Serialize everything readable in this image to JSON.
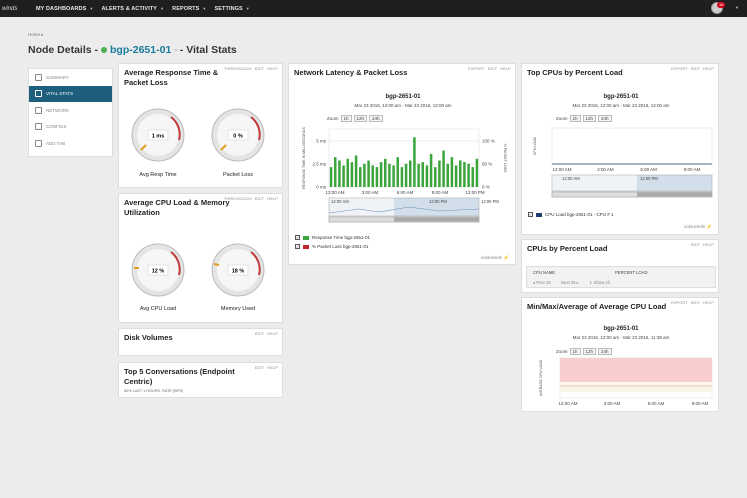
{
  "nav": {
    "brand": "winds",
    "items": [
      {
        "label": "MY DASHBOARDS"
      },
      {
        "label": "ALERTS & ACTIVITY"
      },
      {
        "label": "REPORTS"
      },
      {
        "label": "SETTINGS"
      }
    ],
    "notification_count": "16"
  },
  "breadcrumb": "Home",
  "page": {
    "title_prefix": "Node Details -",
    "node_name": "bgp-2651-01",
    "title_suffix": "- Vital Stats",
    "status_color": "#4cae4c"
  },
  "sidebar": {
    "items": [
      {
        "label": "SUMMARY",
        "icon": "home-icon"
      },
      {
        "label": "VITAL STATS",
        "icon": "monitor-icon",
        "active": true
      },
      {
        "label": "NETWORK",
        "icon": "network-icon"
      },
      {
        "label": "CONFIGS",
        "icon": "gear-icon"
      },
      {
        "label": "ADD TAB",
        "icon": "plus-icon"
      }
    ]
  },
  "panels": {
    "resp_time": {
      "title": "Average Response Time & Packet Loss",
      "links": [
        "THRESHOLDS",
        "EDIT",
        "HELP"
      ],
      "gauge1": {
        "value": "1 ms",
        "caption": "Avg Resp Time"
      },
      "gauge2": {
        "value": "0 %",
        "caption": "Packet Loss"
      }
    },
    "cpu_mem": {
      "title": "Average CPU Load & Memory Utilization",
      "links": [
        "THRESHOLDS",
        "EDIT",
        "HELP"
      ],
      "gauge1": {
        "value": "12 %",
        "caption": "Avg CPU Load"
      },
      "gauge2": {
        "value": "18 %",
        "caption": "Memory Used"
      }
    },
    "disk": {
      "title": "Disk Volumes",
      "links": [
        "EDIT",
        "HELP"
      ]
    },
    "top5": {
      "title": "Top 5 Conversations (Endpoint Centric)",
      "links": [
        "EDIT",
        "HELP"
      ],
      "sub": "60% LAST 1 HOURS, RATE (BPS)"
    },
    "network": {
      "title": "Network Latency & Packet Loss",
      "links": [
        "EXPORT",
        "EDIT",
        "HELP"
      ],
      "chart_title": "bgp-2651-01",
      "chart_sub": "Mar 23 2016, 12:00 am - Mar 23 2016, 12:00 am",
      "zoom_label": "Zoom",
      "zoom_options": [
        "1h",
        "12h",
        "24h"
      ],
      "legend": [
        {
          "label": "Response Time bgp-2651-01",
          "color": "#3aa53a"
        },
        {
          "label": "% Packet Loss bgp-2651-01",
          "color": "#c0262d"
        }
      ],
      "logo": "solarwinds"
    },
    "top_cpus": {
      "title": "Top CPUs by Percent Load",
      "links": [
        "EXPORT",
        "EDIT",
        "HELP"
      ],
      "chart_title": "bgp-2651-01",
      "chart_sub": "Mar 23 2016, 12:00 am - Mar 23 2016, 12:00 am",
      "zoom_label": "Zoom",
      "zoom_options": [
        "1h",
        "12h",
        "24h"
      ],
      "legend": "CPU Load bgp-2651-01 - CPU # 1",
      "logo": "solarwinds"
    },
    "cpus_percent": {
      "title": "CPUs by Percent Load",
      "links": [
        "EDIT",
        "HELP"
      ],
      "col1": "CPU NAME",
      "col2": "PERCENT LOAD",
      "footer1": "Prev 25",
      "footer2": "Next 25",
      "footer3": "Show All"
    },
    "minmax": {
      "title": "Min/Max/Average of Average CPU Load",
      "links": [
        "EXPORT",
        "EDIT",
        "HELP"
      ],
      "chart_title": "bgp-2651-01",
      "chart_sub": "Mar 23 2016, 12:00 am - Mar 23 2016, 11:38 am",
      "zoom_label": "Zoom",
      "zoom_options": [
        "1h",
        "12h",
        "24h"
      ]
    }
  },
  "chart_data": [
    {
      "type": "bar",
      "title": "bgp-2651-01",
      "ylabel": "RESPONSE TIME IN MILLISECONDS",
      "y2label": "% PACKET LOSS",
      "ylim": [
        0,
        3.5
      ],
      "yticks": [
        "0 ms",
        "2.5 ms",
        "5 ms"
      ],
      "y2ticks": [
        "0 %",
        "50 %",
        "100 %"
      ],
      "xticks": [
        "12:00 AM",
        "3:00 AM",
        "6:00 AM",
        "9:00 AM",
        "12:00 PM"
      ],
      "nav_ticks": [
        "12:00 AM",
        "12:00 PM",
        "12:00 PM"
      ],
      "series": [
        {
          "name": "Response Time bgp-2651-01",
          "values": [
            1.2,
            1.8,
            1.6,
            1.3,
            1.7,
            1.5,
            1.9,
            1.2,
            1.4,
            1.6,
            1.3,
            1.2,
            1.5,
            1.7,
            1.4,
            1.3,
            1.8,
            1.2,
            1.4,
            1.6,
            3.0,
            1.4,
            1.5,
            1.3,
            2.0,
            1.2,
            1.6,
            2.2,
            1.4,
            1.8,
            1.3,
            1.6,
            1.5,
            1.4,
            1.2,
            1.7
          ]
        }
      ]
    },
    {
      "type": "line",
      "title": "bgp-2651-01",
      "ylabel": "CPU LOAD",
      "xticks": [
        "12:00 AM",
        "3:00 AM",
        "6:00 AM",
        "9:00 AM"
      ],
      "nav_ticks": [
        "12:00 AM",
        "12:00 PM"
      ],
      "series": [
        {
          "name": "CPU Load bgp-2651-01 - CPU # 1",
          "values": []
        }
      ]
    },
    {
      "type": "area",
      "title": "bgp-2651-01",
      "ylabel": "AVERAGE CPU LOAD",
      "xticks": [
        "12:00 AM",
        "3:00 AM",
        "6:00 AM",
        "9:00 AM"
      ],
      "series": []
    }
  ]
}
